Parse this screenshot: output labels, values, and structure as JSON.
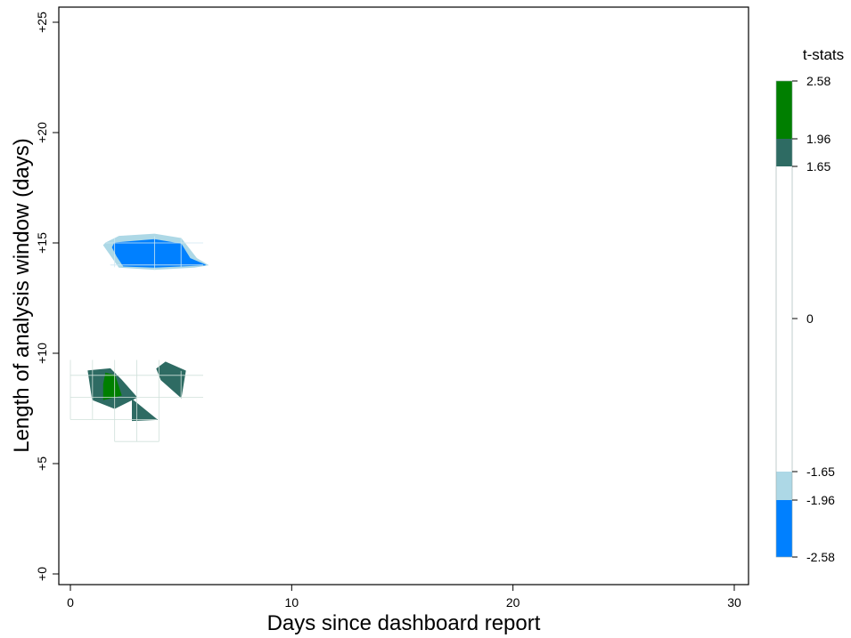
{
  "chart_data": {
    "type": "heatmap",
    "subtype": "filled-contour",
    "title": "",
    "xlabel": "Days since dashboard report",
    "ylabel": "Length of analysis window (days)",
    "xlim": [
      0,
      30
    ],
    "ylim": [
      0,
      25
    ],
    "x_ticks": [
      0,
      10,
      20,
      30
    ],
    "x_tick_labels": [
      "0",
      "10",
      "20",
      "30"
    ],
    "y_ticks": [
      0,
      5,
      10,
      15,
      20,
      25
    ],
    "y_tick_labels": [
      "+0",
      "+5",
      "+10",
      "+15",
      "+20",
      "+25"
    ],
    "grid": false,
    "colorbar": {
      "title": "t-stats",
      "placement": "right",
      "ticks": [
        2.58,
        1.96,
        1.65,
        0,
        -1.65,
        -1.96,
        -2.58
      ],
      "tick_labels": [
        "2.58",
        "1.96",
        "1.65",
        "0",
        "-1.65",
        "-1.96",
        "-2.58"
      ],
      "bands": [
        {
          "from": 1.96,
          "to": 2.58,
          "color": "#007f00"
        },
        {
          "from": 1.65,
          "to": 1.96,
          "color": "#2e6b63"
        },
        {
          "from": -1.65,
          "to": 1.65,
          "color": "#ffffff"
        },
        {
          "from": -1.96,
          "to": -1.65,
          "color": "#add8e6"
        },
        {
          "from": -2.58,
          "to": -1.96,
          "color": "#0080ff"
        }
      ]
    },
    "regions": [
      {
        "band": "-1.96 to -1.65",
        "color": "#add8e6",
        "points": [
          [
            1.6,
            15.0
          ],
          [
            2.2,
            15.3
          ],
          [
            3.8,
            15.4
          ],
          [
            5.0,
            15.2
          ],
          [
            5.7,
            14.3
          ],
          [
            6.2,
            14.0
          ],
          [
            5.6,
            13.9
          ],
          [
            3.8,
            13.8
          ],
          [
            2.2,
            13.9
          ],
          [
            1.5,
            14.9
          ]
        ]
      },
      {
        "band": "-2.58 to -1.96",
        "color": "#0080ff",
        "points": [
          [
            2.0,
            15.0
          ],
          [
            3.8,
            15.15
          ],
          [
            5.0,
            14.95
          ],
          [
            5.4,
            14.3
          ],
          [
            6.1,
            14.0
          ],
          [
            3.8,
            13.9
          ],
          [
            2.4,
            13.95
          ],
          [
            2.1,
            14.4
          ],
          [
            1.9,
            14.8
          ]
        ]
      },
      {
        "band": "1.65 to 1.96",
        "color": "#2e6b63",
        "points": [
          [
            0.8,
            9.2
          ],
          [
            1.8,
            9.3
          ],
          [
            2.3,
            8.8
          ],
          [
            3.0,
            8.0
          ],
          [
            2.0,
            7.5
          ],
          [
            1.0,
            7.9
          ]
        ]
      },
      {
        "band": "1.96 to 2.58",
        "color": "#007f00",
        "points": [
          [
            1.6,
            9.1
          ],
          [
            2.0,
            9.0
          ],
          [
            2.3,
            8.1
          ],
          [
            1.5,
            7.9
          ],
          [
            1.5,
            8.6
          ]
        ]
      },
      {
        "band": "1.65 to 1.96",
        "color": "#2e6b63",
        "points": [
          [
            3.9,
            9.3
          ],
          [
            4.3,
            9.6
          ],
          [
            5.2,
            9.2
          ],
          [
            5.0,
            8.0
          ],
          [
            4.1,
            8.8
          ]
        ]
      },
      {
        "band": "1.65 to 1.96",
        "color": "#2e6b63",
        "points": [
          [
            2.8,
            7.9
          ],
          [
            3.9,
            7.0
          ],
          [
            2.8,
            6.95
          ]
        ]
      }
    ]
  }
}
